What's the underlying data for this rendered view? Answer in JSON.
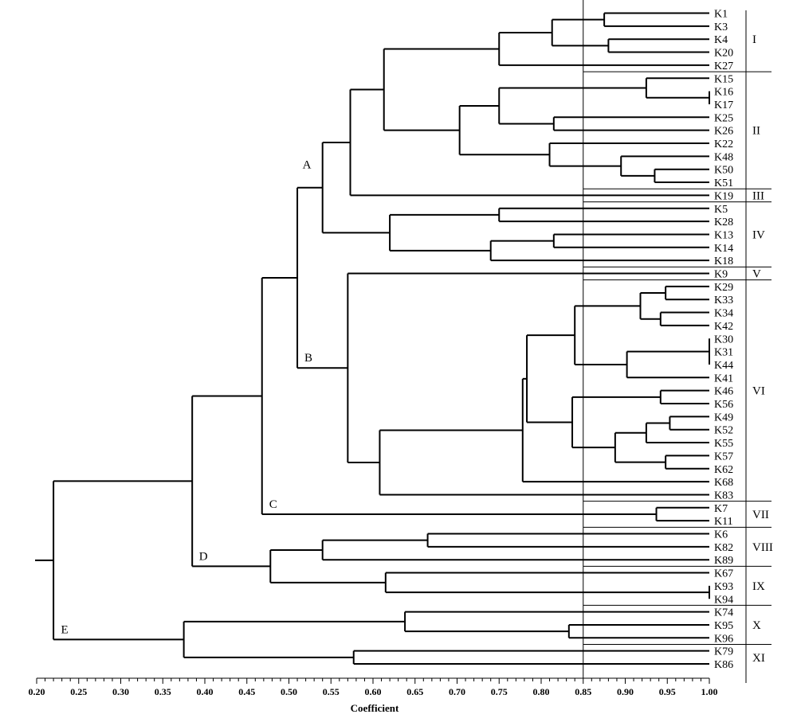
{
  "chart_data": {
    "type": "dendrogram",
    "xlabel": "Coefficient",
    "xlim": [
      0.2,
      1.0
    ],
    "ticks": [
      "0.20",
      "0.25",
      "0.30",
      "0.35",
      "0.40",
      "0.45",
      "0.50",
      "0.55",
      "0.60",
      "0.65",
      "0.70",
      "0.75",
      "0.80",
      "0.85",
      "0.90",
      "0.95",
      "1.00"
    ],
    "cutoff": 0.85,
    "leaves": [
      "K1",
      "K3",
      "K4",
      "K20",
      "K27",
      "K15",
      "K16",
      "K17",
      "K25",
      "K26",
      "K22",
      "K48",
      "K50",
      "K51",
      "K19",
      "K5",
      "K28",
      "K13",
      "K14",
      "K18",
      "K9",
      "K29",
      "K33",
      "K34",
      "K42",
      "K30",
      "K31",
      "K44",
      "K41",
      "K46",
      "K56",
      "K49",
      "K52",
      "K55",
      "K57",
      "K62",
      "K68",
      "K83",
      "K7",
      "K11",
      "K6",
      "K82",
      "K89",
      "K67",
      "K93",
      "K94",
      "K74",
      "K95",
      "K96",
      "K79",
      "K86"
    ],
    "tree": [
      "0.22",
      [
        "0.385",
        [
          "0.468",
          [
            "0.51",
            [
              "0.54",
              [
                "0.573",
                [
                  "0.613",
                  [
                    "0.75",
                    [
                      "0.813",
                      [
                        "0.875",
                        "K1",
                        "K3"
                      ],
                      [
                        "0.88",
                        "K4",
                        "K20"
                      ]
                    ],
                    "K27"
                  ],
                  [
                    "0.703",
                    [
                      "0.75",
                      [
                        "0.925",
                        "K15",
                        [
                          "1.0",
                          "K16",
                          "K17"
                        ]
                      ],
                      [
                        "0.815",
                        "K25",
                        "K26"
                      ]
                    ],
                    [
                      "0.81",
                      "K22",
                      [
                        "0.895",
                        "K48",
                        [
                          "0.935",
                          "K50",
                          "K51"
                        ]
                      ]
                    ]
                  ]
                ],
                "K19"
              ],
              [
                "0.62",
                [
                  "0.75",
                  "K5",
                  "K28"
                ],
                [
                  "0.74",
                  [
                    "0.815",
                    "K13",
                    "K14"
                  ],
                  "K18"
                ]
              ]
            ],
            [
              "0.57",
              "K9",
              [
                "0.608",
                [
                  "0.778",
                  [
                    "0.783",
                    [
                      "0.84",
                      [
                        "0.918",
                        [
                          "0.948",
                          "K29",
                          "K33"
                        ],
                        [
                          "0.942",
                          "K34",
                          "K42"
                        ]
                      ],
                      [
                        "0.902",
                        [
                          "1.0",
                          "K30",
                          "K31",
                          "K44"
                        ],
                        "K41"
                      ]
                    ],
                    [
                      "0.837",
                      [
                        "0.942",
                        "K46",
                        "K56"
                      ],
                      [
                        "0.888",
                        [
                          "0.925",
                          [
                            "0.953",
                            "K49",
                            "K52"
                          ],
                          "K55"
                        ],
                        [
                          "0.948",
                          "K57",
                          "K62"
                        ]
                      ]
                    ]
                  ],
                  "K68"
                ],
                "K83"
              ]
            ]
          ],
          [
            "0.937",
            "K7",
            "K11"
          ]
        ],
        [
          "0.478",
          [
            "0.54",
            [
              "0.665",
              "K6",
              "K82"
            ],
            "K89"
          ],
          [
            "0.615",
            "K67",
            [
              "1.0",
              "K93",
              "K94"
            ]
          ]
        ]
      ],
      [
        "0.375",
        [
          "0.638",
          "K74",
          [
            "0.833",
            "K95",
            "K96"
          ]
        ],
        [
          "0.577",
          "K79",
          "K86"
        ]
      ]
    ],
    "clusters": [
      {
        "label": "A",
        "at": "0.51",
        "side": "upper"
      },
      {
        "label": "B",
        "at": "0.51",
        "side": "lower"
      },
      {
        "label": "C",
        "at": "0.468",
        "side": "lower"
      },
      {
        "label": "D",
        "at": "0.385",
        "side": "lower"
      },
      {
        "label": "E",
        "at": "0.22",
        "side": "lower"
      }
    ],
    "groups": [
      {
        "label": "I",
        "first": "K1",
        "last": "K27"
      },
      {
        "label": "II",
        "first": "K15",
        "last": "K51"
      },
      {
        "label": "III",
        "first": "K19",
        "last": "K19"
      },
      {
        "label": "IV",
        "first": "K5",
        "last": "K18"
      },
      {
        "label": "V",
        "first": "K9",
        "last": "K9"
      },
      {
        "label": "VI",
        "first": "K29",
        "last": "K83"
      },
      {
        "label": "VII",
        "first": "K7",
        "last": "K11"
      },
      {
        "label": "VIII",
        "first": "K6",
        "last": "K89"
      },
      {
        "label": "IX",
        "first": "K67",
        "last": "K94"
      },
      {
        "label": "X",
        "first": "K74",
        "last": "K96"
      },
      {
        "label": "XI",
        "first": "K79",
        "last": "K86"
      }
    ]
  }
}
